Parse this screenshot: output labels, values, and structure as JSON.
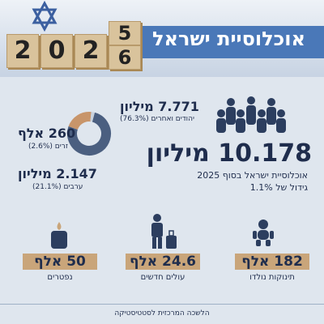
{
  "header": {
    "title": "אוכלוסיית ישראל",
    "year_digits": [
      "2",
      "0",
      "2"
    ],
    "flip_digits": [
      "5",
      "6"
    ]
  },
  "total": {
    "value": "10.178 מיליון",
    "caption": "אוכלוסיית ישראל בסוף 2025",
    "growth": "גידול של 1.1%"
  },
  "donut": {
    "segments": [
      {
        "amount": "7.771 מיליון",
        "label": "יהודים ואחרים",
        "share": 76.3,
        "share_label": "(76.3%)",
        "color": "#4b5f80"
      },
      {
        "amount": "2.147 מיליון",
        "label": "ערבים",
        "share": 21.1,
        "share_label": "(21.1%)",
        "color": "#c8956a"
      },
      {
        "amount": "260 אלף",
        "label": "זרים",
        "share": 2.6,
        "share_label": "(2.6%)",
        "color": "#c9d2de"
      }
    ]
  },
  "stats": [
    {
      "value": "182 אלף",
      "label": "תינוקות נולדו"
    },
    {
      "value": "24.6 אלף",
      "label": "עולים חדשים"
    },
    {
      "value": "50 אלף",
      "label": "נפטרים"
    }
  ],
  "footer": "הלשכה המרכזית לסטטיסטיקה"
}
